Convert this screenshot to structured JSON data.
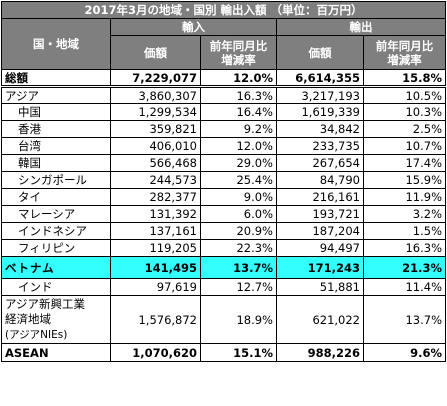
{
  "title": "2017年3月の地域・国別 輸出入額 （単位：百万円）",
  "header": {
    "region_label": "国・地域",
    "import_label": "輸入",
    "export_label": "輸出",
    "value_label": "価額",
    "change_label_line1": "前年同月比",
    "change_label_line2": "増減率"
  },
  "rows": [
    {
      "name": "総額",
      "imp": "7,229,077",
      "imp_chg": "12.0%",
      "exp": "6,614,355",
      "exp_chg": "15.8%"
    },
    {
      "name": "アジア",
      "imp": "3,860,307",
      "imp_chg": "16.3%",
      "exp": "3,217,193",
      "exp_chg": "10.5%"
    },
    {
      "name": "中国",
      "imp": "1,299,534",
      "imp_chg": "16.4%",
      "exp": "1,619,339",
      "exp_chg": "10.3%"
    },
    {
      "name": "香港",
      "imp": "359,821",
      "imp_chg": "9.2%",
      "exp": "34,842",
      "exp_chg": "2.5%"
    },
    {
      "name": "台湾",
      "imp": "406,010",
      "imp_chg": "12.0%",
      "exp": "233,735",
      "exp_chg": "10.7%"
    },
    {
      "name": "韓国",
      "imp": "566,468",
      "imp_chg": "29.0%",
      "exp": "267,654",
      "exp_chg": "17.4%"
    },
    {
      "name": "シンガポール",
      "imp": "244,573",
      "imp_chg": "25.4%",
      "exp": "84,790",
      "exp_chg": "15.9%"
    },
    {
      "name": "タイ",
      "imp": "282,377",
      "imp_chg": "9.0%",
      "exp": "216,161",
      "exp_chg": "11.9%"
    },
    {
      "name": "マレーシア",
      "imp": "131,392",
      "imp_chg": "6.0%",
      "exp": "193,721",
      "exp_chg": "3.2%"
    },
    {
      "name": "インドネシア",
      "imp": "137,161",
      "imp_chg": "20.9%",
      "exp": "187,204",
      "exp_chg": "1.5%"
    },
    {
      "name": "フィリピン",
      "imp": "119,205",
      "imp_chg": "22.3%",
      "exp": "94,497",
      "exp_chg": "16.3%"
    },
    {
      "name": "ベトナム",
      "imp": "141,495",
      "imp_chg": "13.7%",
      "exp": "171,243",
      "exp_chg": "21.3%"
    },
    {
      "name": "インド",
      "imp": "97,619",
      "imp_chg": "12.7%",
      "exp": "51,881",
      "exp_chg": "11.4%"
    },
    {
      "name_line1": "アジア新興工業",
      "name_line2": "経済地域",
      "name_line3": "(アジアNIEs)",
      "imp": "1,576,872",
      "imp_chg": "18.9%",
      "exp": "621,022",
      "exp_chg": "13.7%"
    },
    {
      "name": "ASEAN",
      "imp": "1,070,620",
      "imp_chg": "15.1%",
      "exp": "988,226",
      "exp_chg": "9.6%"
    }
  ]
}
